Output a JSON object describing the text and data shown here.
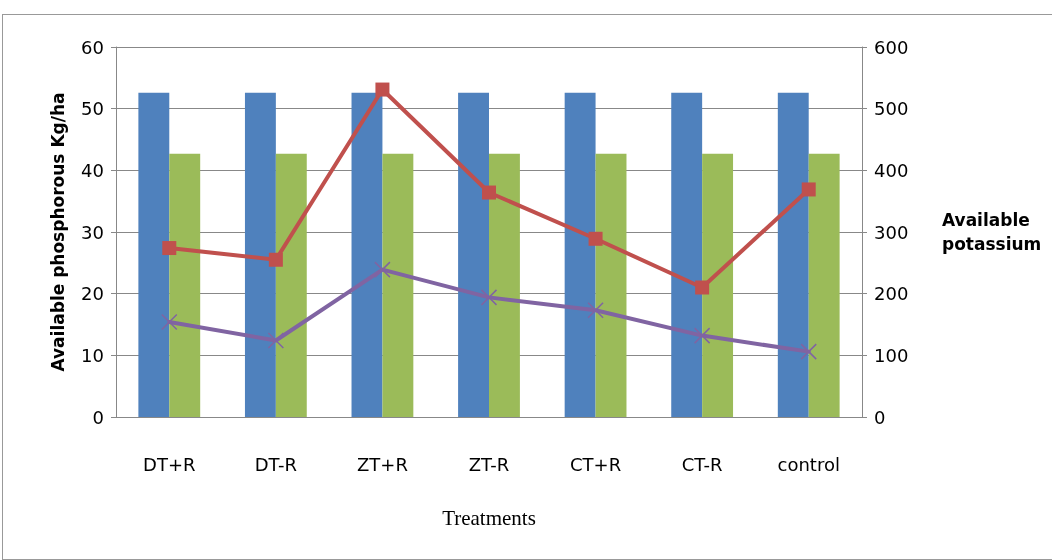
{
  "chart_data": {
    "type": "bar",
    "xlabel": "Treatments",
    "ylabel": "Available phosphorous Kg/ha",
    "y2label": "Available potassium",
    "categories": [
      "DT+R",
      "DT-R",
      "ZT+R",
      "ZT-R",
      "CT+R",
      "CT-R",
      "control"
    ],
    "series": [
      {
        "color": "#4f81bd",
        "values": [
          52.6,
          52.6,
          52.6,
          52.6,
          52.6,
          52.6,
          52.6
        ]
      },
      {
        "color": "#9bbb59",
        "values": [
          42.7,
          42.7,
          42.7,
          42.7,
          42.7,
          42.7,
          42.7
        ]
      },
      {
        "type": "line",
        "axis": "y2",
        "marker": "square",
        "color": "#c0504d",
        "values": [
          274,
          255,
          531,
          364,
          289,
          210,
          369
        ]
      },
      {
        "type": "line",
        "axis": "y2",
        "marker": "cross",
        "color": "#8064a2",
        "values": [
          154,
          124,
          239,
          194,
          173,
          132,
          106
        ]
      }
    ],
    "ylim": [
      0,
      60
    ],
    "yticks": [
      0,
      10,
      20,
      30,
      40,
      50,
      60
    ],
    "y2lim": [
      0,
      600
    ],
    "y2ticks": [
      0,
      100,
      200,
      300,
      400,
      500,
      600
    ],
    "grid": "y"
  }
}
